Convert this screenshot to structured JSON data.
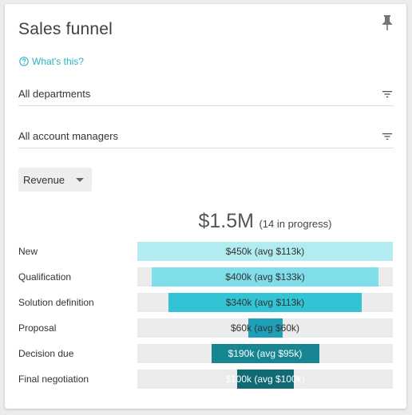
{
  "card": {
    "title": "Sales funnel",
    "whats_this": "What's this?"
  },
  "filters": {
    "department": "All departments",
    "account_manager": "All account managers"
  },
  "metric_select": {
    "selected": "Revenue"
  },
  "summary": {
    "total": "$1.5M",
    "in_progress": "(14 in progress)"
  },
  "funnel": {
    "stages": [
      {
        "name": "New",
        "value_label": "$450k (avg $113k)",
        "value": 450,
        "color": "#b2ebf0",
        "text_color": "#333333"
      },
      {
        "name": "Qualification",
        "value_label": "$400k (avg $133k)",
        "value": 400,
        "color": "#80deea",
        "text_color": "#333333"
      },
      {
        "name": "Solution definition",
        "value_label": "$340k (avg $113k)",
        "value": 340,
        "color": "#32c3d5",
        "text_color": "#333333"
      },
      {
        "name": "Proposal",
        "value_label": "$60k (avg $60k)",
        "value": 60,
        "color": "#1ea1b8",
        "text_color": "#333333"
      },
      {
        "name": "Decision due",
        "value_label": "$190k (avg $95k)",
        "value": 190,
        "color": "#178592",
        "text_color": "#ffffff"
      },
      {
        "name": "Final negotiation",
        "value_label": "$100k (avg $100k)",
        "value": 100,
        "color": "#0f6a73",
        "text_color": "#ffffff"
      }
    ],
    "max_value": 450
  },
  "icons": {
    "pin": "pin-icon",
    "help": "help-circle-icon",
    "filter": "filter-icon",
    "caret": "caret-down-icon"
  },
  "colors": {
    "accent": "#26b3c8",
    "track": "#ebebeb"
  }
}
